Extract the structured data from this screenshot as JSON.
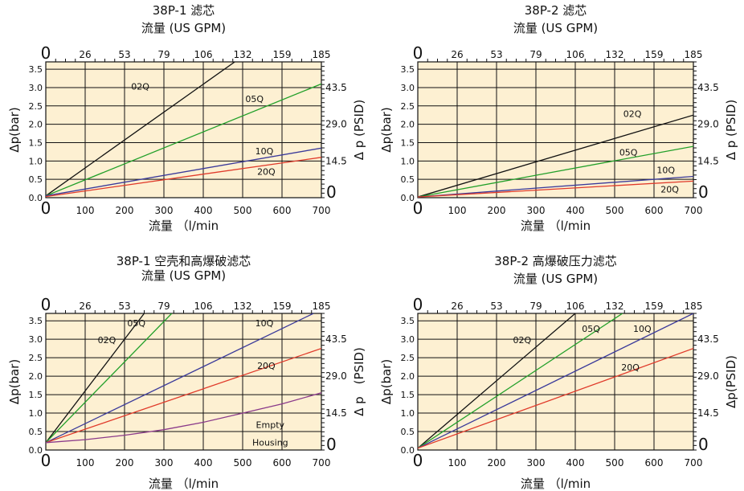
{
  "colors": {
    "background": "#fdf0d2",
    "grid": "#111111",
    "02Q": "#111111",
    "05Q": "#22a02a",
    "10Q": "#3a3a9a",
    "20Q": "#e03a2a",
    "empty": "#8a3a8a"
  },
  "chart_data": [
    {
      "type": "line",
      "title": "38P-1 滤芯",
      "top_axis_title": "流量 (US GPM)",
      "xlabel": "流量 （l/min",
      "ylabel": "Δp(bar)",
      "ylabel_right": "Δ p (PSID)",
      "xlim": [
        0,
        700
      ],
      "ylim": [
        0,
        3.7
      ],
      "x_ticks": [
        "0",
        "100",
        "200",
        "300",
        "400",
        "500",
        "600",
        "700"
      ],
      "top_ticks": [
        "0",
        "26",
        "53",
        "79",
        "106",
        "132",
        "159",
        "185"
      ],
      "y_ticks": [
        "0.0",
        "0.5",
        "1.0",
        "1.5",
        "2.0",
        "2.5",
        "3.0",
        "3.5"
      ],
      "right_ticks": [
        "0",
        "14.5",
        "29.0",
        "43.5"
      ],
      "series": [
        {
          "name": "02Q",
          "color_key": "02Q",
          "x": [
            0,
            480
          ],
          "y": [
            0.05,
            3.7
          ],
          "label_at": [
            240,
            2.95
          ]
        },
        {
          "name": "05Q",
          "color_key": "05Q",
          "x": [
            0,
            700
          ],
          "y": [
            0.05,
            3.1
          ],
          "label_at": [
            530,
            2.6
          ]
        },
        {
          "name": "10Q",
          "color_key": "10Q",
          "x": [
            0,
            700
          ],
          "y": [
            0.05,
            1.35
          ],
          "label_at": [
            555,
            1.18
          ]
        },
        {
          "name": "20Q",
          "color_key": "20Q",
          "x": [
            0,
            700
          ],
          "y": [
            0.03,
            1.1
          ],
          "label_at": [
            560,
            0.62
          ]
        }
      ]
    },
    {
      "type": "line",
      "title": "38P-2 滤芯",
      "top_axis_title": "流量 (US GPM)",
      "xlabel": "流量 （l/min",
      "ylabel": "Δp(bar)",
      "ylabel_right": "Δ p (PSID)",
      "xlim": [
        0,
        700
      ],
      "ylim": [
        0,
        3.7
      ],
      "x_ticks": [
        "0",
        "100",
        "200",
        "300",
        "400",
        "500",
        "600",
        "700"
      ],
      "top_ticks": [
        "0",
        "26",
        "53",
        "79",
        "106",
        "132",
        "159",
        "185"
      ],
      "y_ticks": [
        "0.0",
        "0.5",
        "1.0",
        "1.5",
        "2.0",
        "2.5",
        "3.0",
        "3.5"
      ],
      "right_ticks": [
        "0",
        "14.5",
        "29.0",
        "43.5"
      ],
      "series": [
        {
          "name": "02Q",
          "color_key": "02Q",
          "x": [
            0,
            700
          ],
          "y": [
            0.02,
            2.25
          ],
          "label_at": [
            545,
            2.2
          ]
        },
        {
          "name": "05Q",
          "color_key": "05Q",
          "x": [
            0,
            700
          ],
          "y": [
            0.02,
            1.4
          ],
          "label_at": [
            535,
            1.15
          ]
        },
        {
          "name": "10Q",
          "color_key": "10Q",
          "x": [
            0,
            700
          ],
          "y": [
            0.02,
            0.58
          ],
          "label_at": [
            630,
            0.67
          ]
        },
        {
          "name": "20Q",
          "color_key": "20Q",
          "x": [
            0,
            700
          ],
          "y": [
            0.02,
            0.45
          ],
          "label_at": [
            640,
            0.14
          ]
        }
      ]
    },
    {
      "type": "line",
      "title": "38P-1 空壳和高爆破滤芯",
      "top_axis_title": "流量 (US GPM)",
      "xlabel": "流量 （l/min",
      "ylabel": "Δp(bar)",
      "ylabel_right": "Δ p　(PSID)",
      "xlim": [
        0,
        700
      ],
      "ylim": [
        0,
        3.7
      ],
      "x_ticks": [
        "0",
        "100",
        "200",
        "300",
        "400",
        "500",
        "600",
        "700"
      ],
      "top_ticks": [
        "0",
        "26",
        "53",
        "79",
        "106",
        "132",
        "159",
        "185"
      ],
      "y_ticks": [
        "0.0",
        "0.5",
        "1.0",
        "1.5",
        "2.0",
        "2.5",
        "3.0",
        "3.5"
      ],
      "right_ticks": [
        "0",
        "14.5",
        "29.0",
        "43.5"
      ],
      "series": [
        {
          "name": "02Q",
          "color_key": "02Q",
          "x": [
            0,
            250
          ],
          "y": [
            0.2,
            3.7
          ],
          "label_at": [
            155,
            2.9
          ]
        },
        {
          "name": "05Q",
          "color_key": "05Q",
          "x": [
            0,
            320
          ],
          "y": [
            0.2,
            3.7
          ],
          "label_at": [
            230,
            3.35
          ]
        },
        {
          "name": "10Q",
          "color_key": "10Q",
          "x": [
            0,
            680
          ],
          "y": [
            0.2,
            3.7
          ],
          "label_at": [
            555,
            3.35
          ]
        },
        {
          "name": "20Q",
          "color_key": "20Q",
          "x": [
            0,
            700
          ],
          "y": [
            0.2,
            2.75
          ],
          "label_at": [
            560,
            2.2
          ]
        },
        {
          "name": "Empty Housing",
          "label_lines": [
            "Empty",
            "Housing"
          ],
          "color_key": "empty",
          "x": [
            0,
            100,
            200,
            300,
            400,
            500,
            600,
            700
          ],
          "y": [
            0.2,
            0.28,
            0.4,
            0.55,
            0.75,
            1.0,
            1.25,
            1.55
          ],
          "label_at": [
            570,
            0.6
          ]
        }
      ]
    },
    {
      "type": "line",
      "title": "38P-2 高爆破压力滤芯",
      "top_axis_title": "流量 (US GPM)",
      "xlabel": "流量 （l/min",
      "ylabel": "Δp(bar)",
      "ylabel_right": "Δp(PSID)",
      "xlim": [
        0,
        700
      ],
      "ylim": [
        0,
        3.7
      ],
      "x_ticks": [
        "0",
        "100",
        "200",
        "300",
        "400",
        "500",
        "600",
        "700"
      ],
      "top_ticks": [
        "0",
        "26",
        "53",
        "79",
        "106",
        "132",
        "159",
        "185"
      ],
      "y_ticks": [
        "0.0",
        "0.5",
        "1.0",
        "1.5",
        "2.0",
        "2.5",
        "3.0",
        "3.5"
      ],
      "right_ticks": [
        "0",
        "14.5",
        "29.0",
        "43.5"
      ],
      "series": [
        {
          "name": "02Q",
          "color_key": "02Q",
          "x": [
            0,
            400
          ],
          "y": [
            0.05,
            3.7
          ],
          "label_at": [
            265,
            2.9
          ]
        },
        {
          "name": "05Q",
          "color_key": "05Q",
          "x": [
            0,
            520
          ],
          "y": [
            0.05,
            3.7
          ],
          "label_at": [
            440,
            3.2
          ]
        },
        {
          "name": "10Q",
          "color_key": "10Q",
          "x": [
            0,
            700
          ],
          "y": [
            0.05,
            3.7
          ],
          "label_at": [
            570,
            3.2
          ]
        },
        {
          "name": "20Q",
          "color_key": "20Q",
          "x": [
            0,
            700
          ],
          "y": [
            0.05,
            2.75
          ],
          "label_at": [
            540,
            2.15
          ]
        }
      ]
    }
  ]
}
